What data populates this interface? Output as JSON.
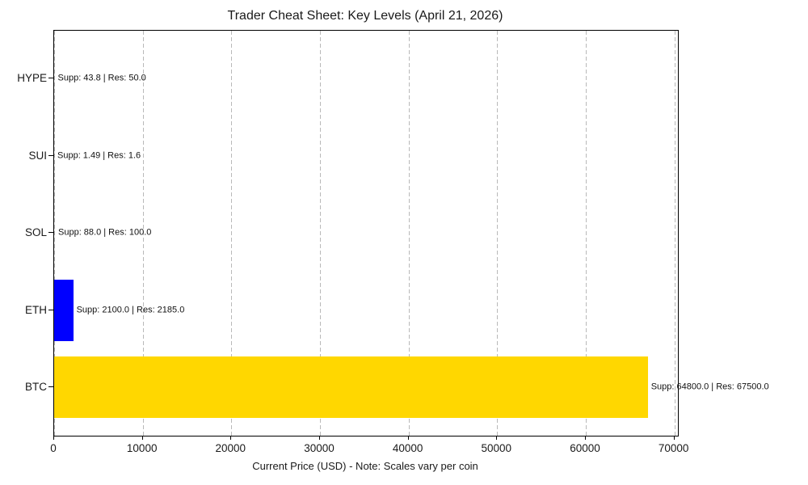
{
  "figure": {
    "background": "#ffffff",
    "text_color": "#1a1a1a",
    "grid_color": "#b9b9b9",
    "spine_color": "#000000"
  },
  "chart_data": {
    "type": "bar",
    "orientation": "horizontal",
    "title": "Trader Cheat Sheet: Key Levels (April 21, 2026)",
    "xlabel": "Current Price (USD) - Note: Scales vary per coin",
    "ylabel": "",
    "xlim": [
      0,
      70400
    ],
    "x_ticks": [
      0,
      10000,
      20000,
      30000,
      40000,
      50000,
      60000,
      70000
    ],
    "grid": "vertical-dashed",
    "legend": "none",
    "categories_top_to_bottom": [
      "HYPE",
      "SUI",
      "SOL",
      "ETH",
      "BTC"
    ],
    "rows": [
      {
        "symbol": "HYPE",
        "current_price": 46,
        "support": 43.8,
        "resistance": 50.0,
        "annotation": "Supp: 43.8 | Res: 50.0",
        "bar_color": null
      },
      {
        "symbol": "SUI",
        "current_price": 1.55,
        "support": 1.49,
        "resistance": 1.6,
        "annotation": "Supp: 1.49 | Res: 1.6",
        "bar_color": null
      },
      {
        "symbol": "SOL",
        "current_price": 95,
        "support": 88.0,
        "resistance": 100.0,
        "annotation": "Supp: 88.0 | Res: 100.0",
        "bar_color": null
      },
      {
        "symbol": "ETH",
        "current_price": 2150,
        "support": 2100.0,
        "resistance": 2185.0,
        "annotation": "Supp: 2100.0 | Res: 2185.0",
        "bar_color": "#0000FF"
      },
      {
        "symbol": "BTC",
        "current_price": 67000,
        "support": 64800.0,
        "resistance": 67500.0,
        "annotation": "Supp: 64800.0 | Res: 67500.0",
        "bar_color": "#FFD700"
      }
    ]
  }
}
